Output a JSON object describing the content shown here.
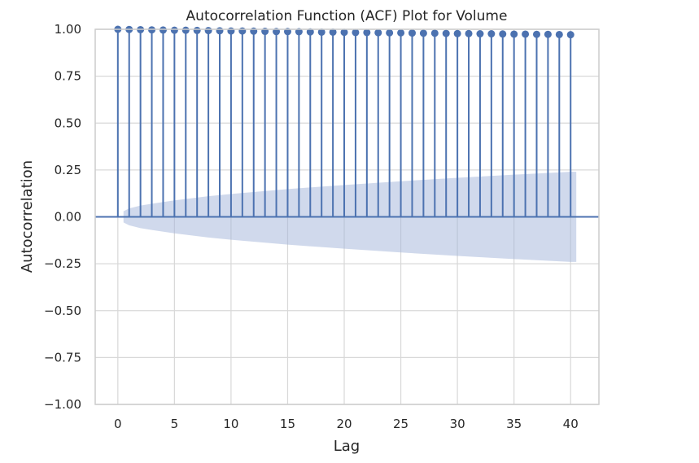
{
  "chart_data": {
    "type": "line",
    "title": "Autocorrelation Function (ACF) Plot for Volume",
    "xlabel": "Lag",
    "ylabel": "Autocorrelation",
    "xlim": [
      -2,
      42.5
    ],
    "ylim": [
      -1.0,
      1.0
    ],
    "x_ticks": [
      0,
      5,
      10,
      15,
      20,
      25,
      30,
      35,
      40
    ],
    "y_ticks": [
      -1.0,
      -0.75,
      -0.5,
      -0.25,
      0.0,
      0.25,
      0.5,
      0.75,
      1.0
    ],
    "y_tick_labels": [
      "−1.00",
      "−0.75",
      "−0.50",
      "−0.25",
      "0.00",
      "0.25",
      "0.50",
      "0.75",
      "1.00"
    ],
    "grid": true,
    "series": [
      {
        "x": [
          0,
          1,
          2,
          3,
          4,
          5,
          6,
          7,
          8,
          9,
          10,
          11,
          12,
          13,
          14,
          15,
          16,
          17,
          18,
          19,
          20,
          21,
          22,
          23,
          24,
          25,
          26,
          27,
          28,
          29,
          30,
          31,
          32,
          33,
          34,
          35,
          36,
          37,
          38,
          39,
          40
        ],
        "values": [
          1.0,
          0.999,
          0.998,
          0.997,
          0.996,
          0.995,
          0.995,
          0.994,
          0.993,
          0.992,
          0.991,
          0.991,
          0.99,
          0.989,
          0.988,
          0.988,
          0.987,
          0.986,
          0.985,
          0.985,
          0.984,
          0.983,
          0.983,
          0.982,
          0.981,
          0.981,
          0.98,
          0.979,
          0.979,
          0.978,
          0.977,
          0.977,
          0.976,
          0.976,
          0.975,
          0.974,
          0.974,
          0.973,
          0.973,
          0.972,
          0.971
        ]
      }
    ],
    "confidence_band": {
      "x": [
        0.5,
        1,
        2,
        3,
        5,
        8,
        10,
        15,
        20,
        25,
        30,
        35,
        40,
        40.5
      ],
      "upper": [
        0.03,
        0.045,
        0.06,
        0.07,
        0.088,
        0.11,
        0.122,
        0.148,
        0.17,
        0.19,
        0.208,
        0.225,
        0.24,
        0.24
      ]
    },
    "colors": {
      "series": "#4c72b0",
      "band": "#a1b4da",
      "grid": "#d8d8d8",
      "frame": "#cccccc",
      "text": "#262626"
    }
  }
}
